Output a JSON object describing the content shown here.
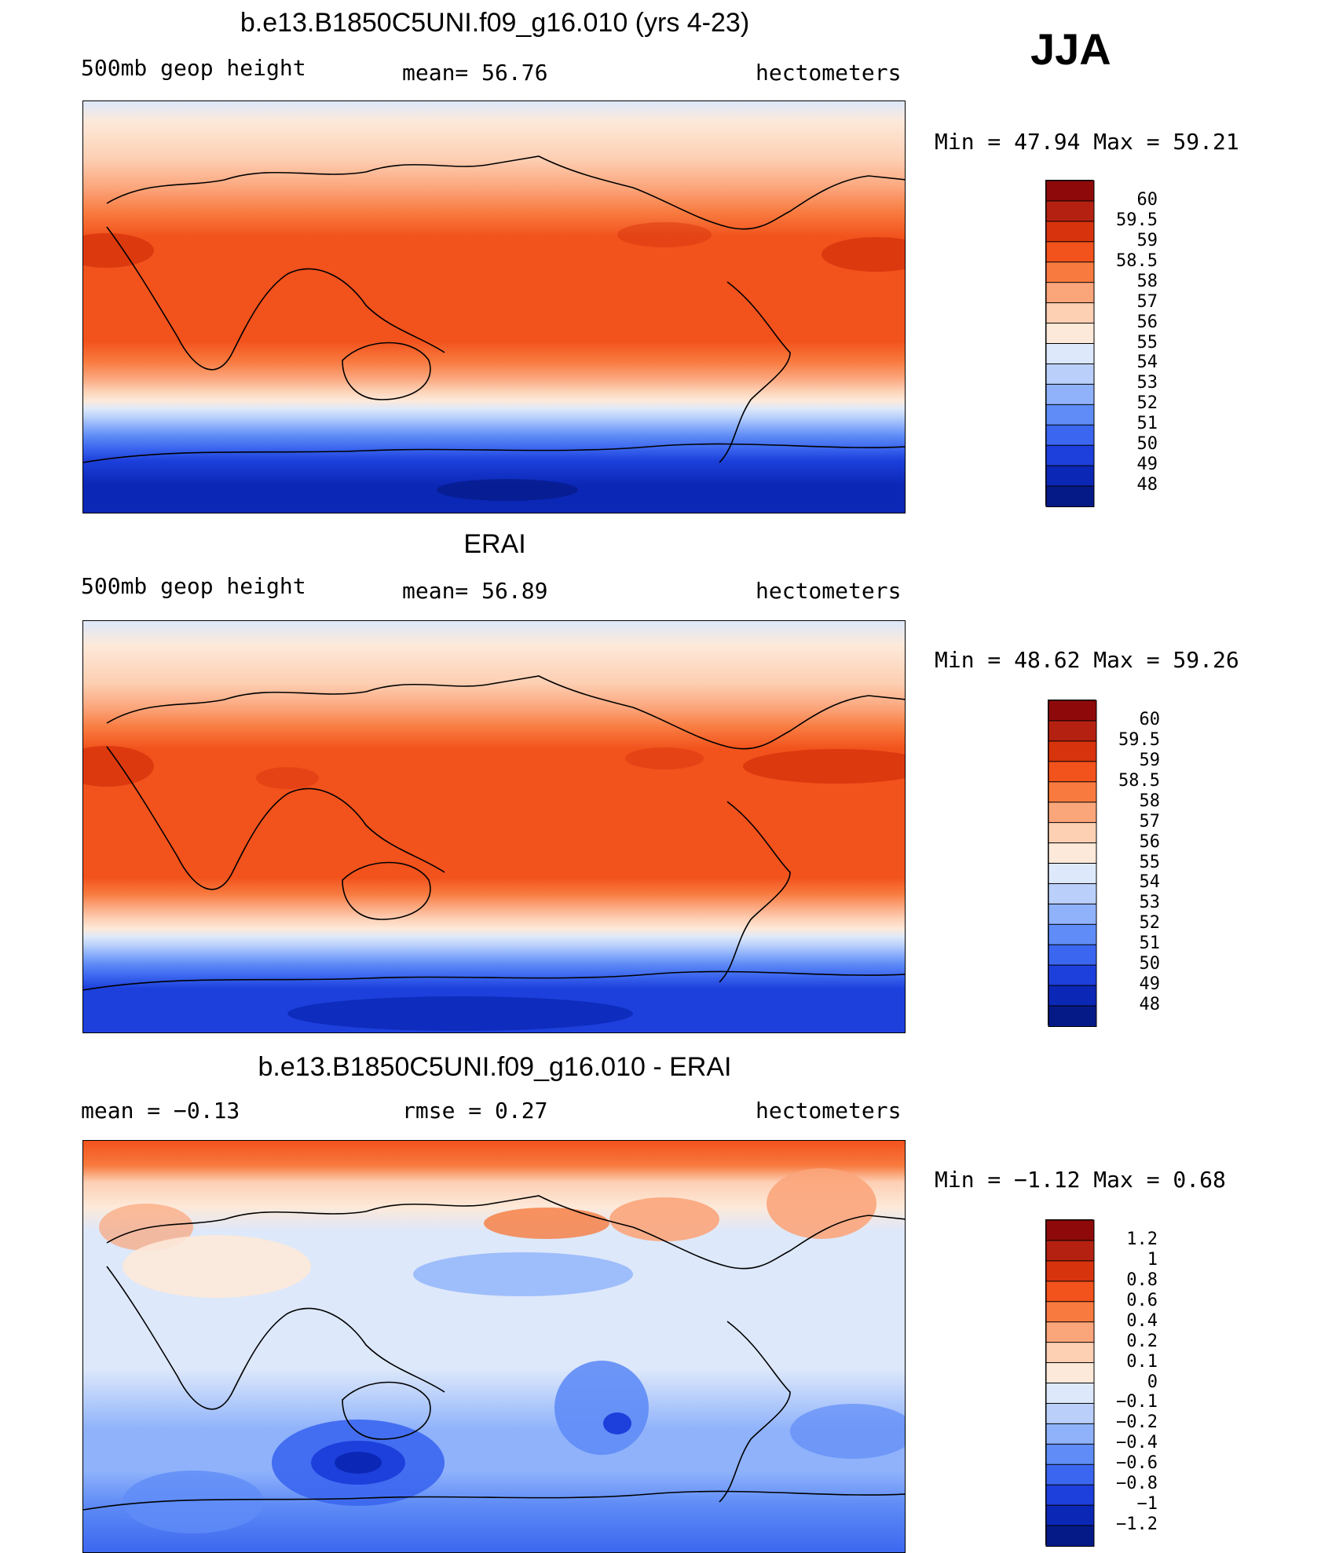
{
  "season": "JJA",
  "panels": [
    {
      "title": "b.e13.B1850C5UNI.f09_g16.010 (yrs 4-23)",
      "left_label": "500mb geop height",
      "center_label": "mean=  56.76",
      "right_label": "hectometers",
      "minmax": "Min =   47.94 Max =   59.21",
      "colorbar": {
        "levels": [
          "60",
          "59.5",
          "59",
          "58.5",
          "58",
          "57",
          "56",
          "55",
          "54",
          "53",
          "52",
          "51",
          "50",
          "49",
          "48"
        ],
        "colors": [
          "#8e0a0a",
          "#b52111",
          "#d7330d",
          "#f2521c",
          "#f87a3f",
          "#fba57b",
          "#fdcfb3",
          "#fde9d9",
          "#dde8fa",
          "#bad0fb",
          "#8fb2fb",
          "#5f8cf6",
          "#3b66ef",
          "#1d40dc",
          "#0b27b5",
          "#051a86"
        ]
      }
    },
    {
      "title": "ERAI",
      "left_label": "500mb geop height",
      "center_label": "mean=  56.89",
      "right_label": "hectometers",
      "minmax": "Min =   48.62 Max =   59.26",
      "colorbar": {
        "levels": [
          "60",
          "59.5",
          "59",
          "58.5",
          "58",
          "57",
          "56",
          "55",
          "54",
          "53",
          "52",
          "51",
          "50",
          "49",
          "48"
        ],
        "colors": [
          "#8e0a0a",
          "#b52111",
          "#d7330d",
          "#f2521c",
          "#f87a3f",
          "#fba57b",
          "#fdcfb3",
          "#fde9d9",
          "#dde8fa",
          "#bad0fb",
          "#8fb2fb",
          "#5f8cf6",
          "#3b66ef",
          "#1d40dc",
          "#0b27b5",
          "#051a86"
        ]
      }
    },
    {
      "title": "b.e13.B1850C5UNI.f09_g16.010 - ERAI",
      "left_label": "mean =   −0.13",
      "center_label": "rmse =    0.27",
      "right_label": "hectometers",
      "minmax": "Min =   −1.12 Max =    0.68",
      "colorbar": {
        "levels": [
          "1.2",
          "1",
          "0.8",
          "0.6",
          "0.4",
          "0.2",
          "0.1",
          "0",
          "−0.1",
          "−0.2",
          "−0.4",
          "−0.6",
          "−0.8",
          "−1",
          "−1.2"
        ],
        "colors": [
          "#8e0a0a",
          "#b52111",
          "#d7330d",
          "#f2521c",
          "#f87a3f",
          "#fba57b",
          "#fdcfb3",
          "#fde9d9",
          "#dde8fa",
          "#bad0fb",
          "#8fb2fb",
          "#5f8cf6",
          "#3b66ef",
          "#1d40dc",
          "#0b27b5",
          "#051a86"
        ]
      }
    }
  ],
  "chart_data": [
    {
      "type": "heatmap",
      "title": "b.e13.B1850C5UNI.f09_g16.010 (yrs 4-23)",
      "variable": "500mb geop height",
      "units": "hectometers",
      "mean": 56.76,
      "min": 47.94,
      "max": 59.21,
      "contour_levels": [
        48,
        49,
        50,
        51,
        52,
        53,
        54,
        55,
        56,
        57,
        58,
        58.5,
        59,
        59.5,
        60
      ]
    },
    {
      "type": "heatmap",
      "title": "ERAI",
      "variable": "500mb geop height",
      "units": "hectometers",
      "mean": 56.89,
      "min": 48.62,
      "max": 59.26,
      "contour_levels": [
        48,
        49,
        50,
        51,
        52,
        53,
        54,
        55,
        56,
        57,
        58,
        58.5,
        59,
        59.5,
        60
      ]
    },
    {
      "type": "heatmap",
      "title": "b.e13.B1850C5UNI.f09_g16.010 - ERAI",
      "units": "hectometers",
      "mean": -0.13,
      "rmse": 0.27,
      "min": -1.12,
      "max": 0.68,
      "contour_levels": [
        -1.2,
        -1,
        -0.8,
        -0.6,
        -0.4,
        -0.2,
        -0.1,
        0,
        0.1,
        0.2,
        0.4,
        0.6,
        0.8,
        1,
        1.2
      ]
    }
  ]
}
